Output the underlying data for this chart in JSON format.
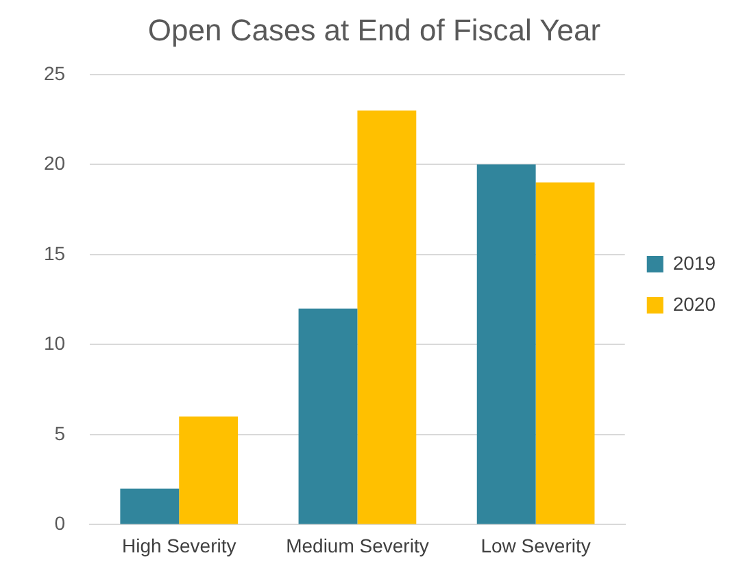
{
  "chart_data": {
    "type": "bar",
    "title": "Open Cases at End of Fiscal Year",
    "categories": [
      "High Severity",
      "Medium Severity",
      "Low Severity"
    ],
    "series": [
      {
        "name": "2019",
        "color": "#31859c",
        "values": [
          2,
          12,
          20
        ]
      },
      {
        "name": "2020",
        "color": "#ffc000",
        "values": [
          6,
          23,
          19
        ]
      }
    ],
    "ylim": [
      0,
      25
    ],
    "yticks": [
      0,
      5,
      10,
      15,
      20,
      25
    ],
    "grid": "y",
    "legend": "right"
  }
}
